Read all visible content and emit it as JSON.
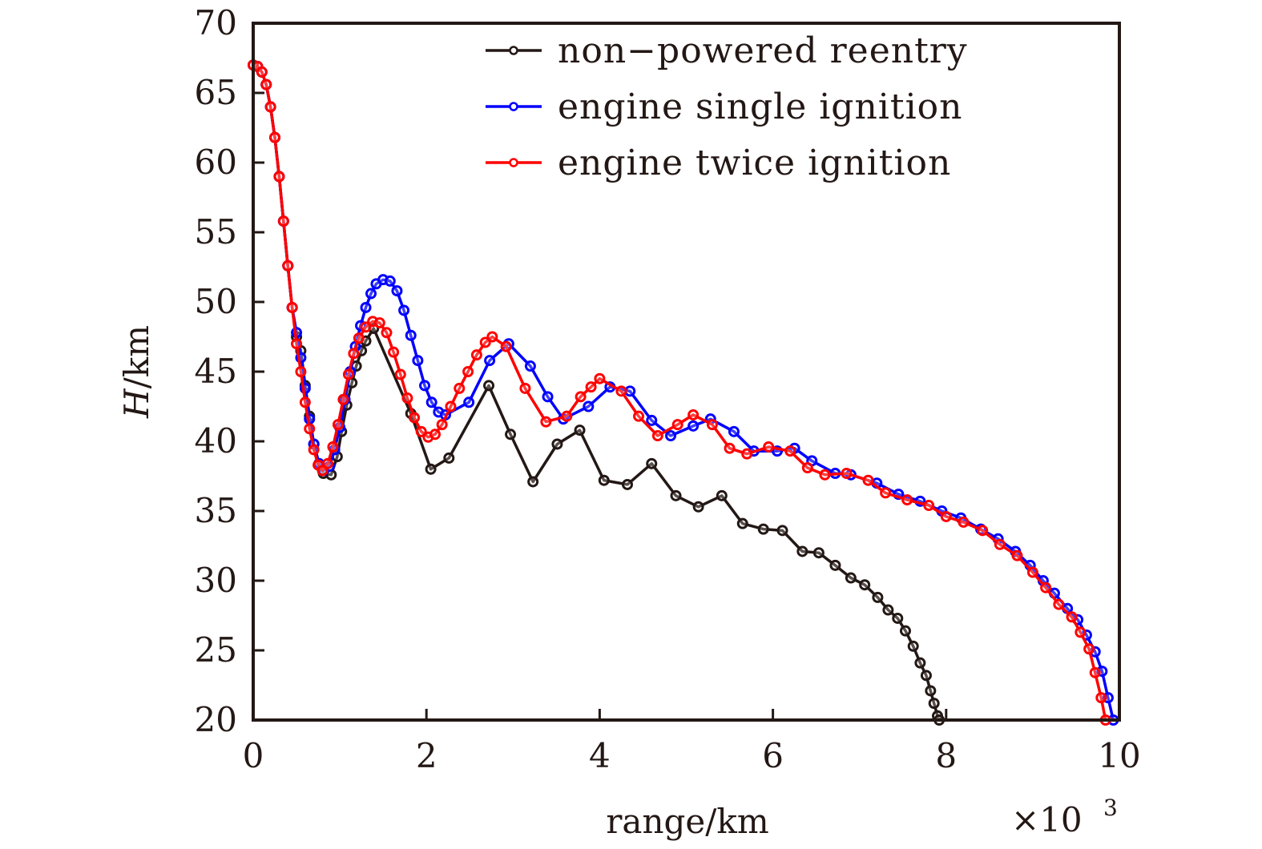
{
  "chart_data": {
    "type": "line",
    "title": "",
    "xlabel": "range/km",
    "x_multiplier_label": "×10",
    "x_multiplier_exp": "3",
    "ylabel_italic": "H",
    "ylabel_rest": "/km",
    "xlim": [
      0,
      10
    ],
    "ylim": [
      20,
      70
    ],
    "x_ticks": [
      "0",
      "2",
      "4",
      "6",
      "8",
      "10"
    ],
    "x_tick_values": [
      0,
      2,
      4,
      6,
      8,
      10
    ],
    "y_ticks": [
      "20",
      "25",
      "30",
      "35",
      "40",
      "45",
      "50",
      "55",
      "60",
      "65",
      "70"
    ],
    "y_tick_values": [
      20,
      25,
      30,
      35,
      40,
      45,
      50,
      55,
      60,
      65,
      70
    ],
    "grid": false,
    "legend_position": "top-right",
    "marker": "open-circle",
    "series": [
      {
        "name": "non−powered reentry",
        "color": "#231815",
        "points": [
          [
            0.0,
            67.0
          ],
          [
            0.05,
            66.9
          ],
          [
            0.1,
            66.5
          ],
          [
            0.15,
            65.6
          ],
          [
            0.2,
            64.0
          ],
          [
            0.25,
            61.8
          ],
          [
            0.3,
            59.0
          ],
          [
            0.35,
            55.8
          ],
          [
            0.4,
            52.6
          ],
          [
            0.45,
            49.6
          ],
          [
            0.5,
            47.5
          ],
          [
            0.55,
            46.5
          ],
          [
            0.6,
            44.0
          ],
          [
            0.65,
            41.8
          ],
          [
            0.7,
            39.8
          ],
          [
            0.76,
            38.4
          ],
          [
            0.81,
            37.7
          ],
          [
            0.9,
            37.6
          ],
          [
            0.97,
            38.9
          ],
          [
            1.02,
            40.7
          ],
          [
            1.08,
            42.6
          ],
          [
            1.14,
            44.2
          ],
          [
            1.19,
            45.4
          ],
          [
            1.25,
            46.5
          ],
          [
            1.3,
            47.2
          ],
          [
            1.39,
            48.1
          ],
          [
            1.82,
            42.0
          ],
          [
            2.05,
            38.0
          ],
          [
            2.26,
            38.8
          ],
          [
            2.72,
            44.0
          ],
          [
            2.97,
            40.5
          ],
          [
            3.23,
            37.1
          ],
          [
            3.51,
            39.8
          ],
          [
            3.77,
            40.8
          ],
          [
            4.05,
            37.2
          ],
          [
            4.32,
            36.9
          ],
          [
            4.6,
            38.4
          ],
          [
            4.88,
            36.1
          ],
          [
            5.14,
            35.3
          ],
          [
            5.41,
            36.1
          ],
          [
            5.65,
            34.1
          ],
          [
            5.89,
            33.7
          ],
          [
            6.11,
            33.6
          ],
          [
            6.34,
            32.1
          ],
          [
            6.53,
            32.0
          ],
          [
            6.72,
            31.1
          ],
          [
            6.9,
            30.2
          ],
          [
            7.06,
            29.7
          ],
          [
            7.21,
            28.8
          ],
          [
            7.33,
            27.9
          ],
          [
            7.44,
            27.3
          ],
          [
            7.53,
            26.4
          ],
          [
            7.62,
            25.3
          ],
          [
            7.7,
            24.1
          ],
          [
            7.77,
            23.2
          ],
          [
            7.82,
            22.1
          ],
          [
            7.86,
            21.2
          ],
          [
            7.9,
            20.3
          ],
          [
            7.92,
            20.0
          ]
        ]
      },
      {
        "name": "engine single ignition",
        "color": "#0000ff",
        "points": [
          [
            0.0,
            67.0
          ],
          [
            0.05,
            66.9
          ],
          [
            0.1,
            66.5
          ],
          [
            0.15,
            65.6
          ],
          [
            0.2,
            64.0
          ],
          [
            0.25,
            61.8
          ],
          [
            0.3,
            59.0
          ],
          [
            0.35,
            55.8
          ],
          [
            0.4,
            52.6
          ],
          [
            0.45,
            49.6
          ],
          [
            0.5,
            47.8
          ],
          [
            0.55,
            46.0
          ],
          [
            0.6,
            43.8
          ],
          [
            0.65,
            41.6
          ],
          [
            0.7,
            39.8
          ],
          [
            0.76,
            38.4
          ],
          [
            0.81,
            37.9
          ],
          [
            0.88,
            38.2
          ],
          [
            0.94,
            39.4
          ],
          [
            1.0,
            41.0
          ],
          [
            1.06,
            43.0
          ],
          [
            1.12,
            45.0
          ],
          [
            1.18,
            46.8
          ],
          [
            1.24,
            48.3
          ],
          [
            1.3,
            49.6
          ],
          [
            1.36,
            50.6
          ],
          [
            1.42,
            51.3
          ],
          [
            1.5,
            51.6
          ],
          [
            1.58,
            51.5
          ],
          [
            1.66,
            50.8
          ],
          [
            1.74,
            49.4
          ],
          [
            1.82,
            47.6
          ],
          [
            1.9,
            45.8
          ],
          [
            1.98,
            44.0
          ],
          [
            2.06,
            42.8
          ],
          [
            2.14,
            42.1
          ],
          [
            2.22,
            41.9
          ],
          [
            2.49,
            42.8
          ],
          [
            2.73,
            45.8
          ],
          [
            2.95,
            47.0
          ],
          [
            3.2,
            45.4
          ],
          [
            3.4,
            43.2
          ],
          [
            3.58,
            41.6
          ],
          [
            3.87,
            42.5
          ],
          [
            4.12,
            43.9
          ],
          [
            4.35,
            43.6
          ],
          [
            4.6,
            41.5
          ],
          [
            4.82,
            40.4
          ],
          [
            5.08,
            41.1
          ],
          [
            5.28,
            41.6
          ],
          [
            5.55,
            40.7
          ],
          [
            5.78,
            39.3
          ],
          [
            6.05,
            39.3
          ],
          [
            6.25,
            39.5
          ],
          [
            6.45,
            38.6
          ],
          [
            6.72,
            37.7
          ],
          [
            6.9,
            37.6
          ],
          [
            7.2,
            37.0
          ],
          [
            7.45,
            36.2
          ],
          [
            7.7,
            35.7
          ],
          [
            7.95,
            35.0
          ],
          [
            8.17,
            34.5
          ],
          [
            8.4,
            33.7
          ],
          [
            8.6,
            33.0
          ],
          [
            8.8,
            32.1
          ],
          [
            8.97,
            31.1
          ],
          [
            9.12,
            30.0
          ],
          [
            9.25,
            29.1
          ],
          [
            9.4,
            28.0
          ],
          [
            9.52,
            27.2
          ],
          [
            9.62,
            26.1
          ],
          [
            9.72,
            24.9
          ],
          [
            9.8,
            23.5
          ],
          [
            9.87,
            21.6
          ],
          [
            9.93,
            20.0
          ]
        ]
      },
      {
        "name": "engine twice ignition",
        "color": "#ff0000",
        "points": [
          [
            0.0,
            67.0
          ],
          [
            0.05,
            66.9
          ],
          [
            0.1,
            66.5
          ],
          [
            0.15,
            65.6
          ],
          [
            0.2,
            64.0
          ],
          [
            0.25,
            61.8
          ],
          [
            0.3,
            59.0
          ],
          [
            0.35,
            55.8
          ],
          [
            0.4,
            52.6
          ],
          [
            0.45,
            49.6
          ],
          [
            0.5,
            47.0
          ],
          [
            0.55,
            45.0
          ],
          [
            0.6,
            42.8
          ],
          [
            0.65,
            40.9
          ],
          [
            0.7,
            39.4
          ],
          [
            0.75,
            38.3
          ],
          [
            0.8,
            37.9
          ],
          [
            0.86,
            38.4
          ],
          [
            0.92,
            39.6
          ],
          [
            0.98,
            41.2
          ],
          [
            1.04,
            43.0
          ],
          [
            1.1,
            44.8
          ],
          [
            1.16,
            46.3
          ],
          [
            1.22,
            47.4
          ],
          [
            1.3,
            48.2
          ],
          [
            1.38,
            48.6
          ],
          [
            1.46,
            48.5
          ],
          [
            1.54,
            47.8
          ],
          [
            1.62,
            46.4
          ],
          [
            1.7,
            44.8
          ],
          [
            1.78,
            43.1
          ],
          [
            1.86,
            41.7
          ],
          [
            1.94,
            40.7
          ],
          [
            2.02,
            40.3
          ],
          [
            2.1,
            40.5
          ],
          [
            2.18,
            41.2
          ],
          [
            2.28,
            42.5
          ],
          [
            2.38,
            43.8
          ],
          [
            2.48,
            45.0
          ],
          [
            2.58,
            46.2
          ],
          [
            2.68,
            47.1
          ],
          [
            2.76,
            47.5
          ],
          [
            2.92,
            46.8
          ],
          [
            3.14,
            43.8
          ],
          [
            3.38,
            41.4
          ],
          [
            3.62,
            41.8
          ],
          [
            3.78,
            43.2
          ],
          [
            3.9,
            43.9
          ],
          [
            4.0,
            44.5
          ],
          [
            4.25,
            43.6
          ],
          [
            4.45,
            41.8
          ],
          [
            4.67,
            40.4
          ],
          [
            4.9,
            41.2
          ],
          [
            5.08,
            41.9
          ],
          [
            5.3,
            41.2
          ],
          [
            5.5,
            39.5
          ],
          [
            5.7,
            39.1
          ],
          [
            5.95,
            39.6
          ],
          [
            6.2,
            39.3
          ],
          [
            6.4,
            38.1
          ],
          [
            6.6,
            37.6
          ],
          [
            6.85,
            37.7
          ],
          [
            7.1,
            37.2
          ],
          [
            7.3,
            36.3
          ],
          [
            7.55,
            35.8
          ],
          [
            7.8,
            35.4
          ],
          [
            8.0,
            34.6
          ],
          [
            8.2,
            34.2
          ],
          [
            8.42,
            33.6
          ],
          [
            8.62,
            32.6
          ],
          [
            8.82,
            31.8
          ],
          [
            9.0,
            30.6
          ],
          [
            9.15,
            29.5
          ],
          [
            9.3,
            28.3
          ],
          [
            9.45,
            27.4
          ],
          [
            9.55,
            26.3
          ],
          [
            9.65,
            25.1
          ],
          [
            9.72,
            23.4
          ],
          [
            9.79,
            21.6
          ],
          [
            9.84,
            20.0
          ]
        ]
      }
    ]
  }
}
